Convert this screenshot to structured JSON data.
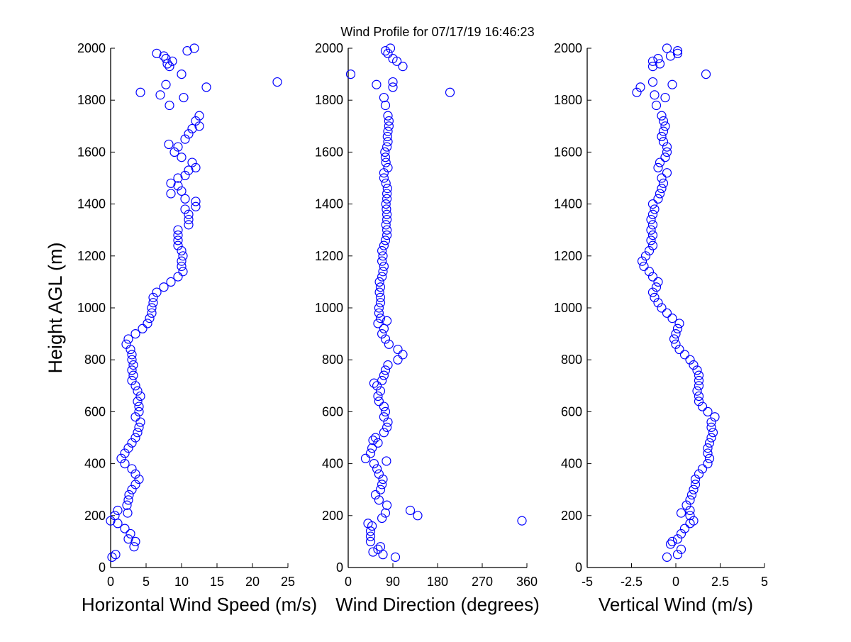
{
  "chart_data": [
    {
      "type": "scatter",
      "title": "Wind Profile for  07/17/19 16:46:23",
      "xlabel": "Horizontal Wind Speed (m/s)",
      "ylabel": "Height AGL (m)",
      "xlim": [
        0,
        25
      ],
      "ylim": [
        0,
        2000
      ],
      "xticks": [
        "0",
        "5",
        "10",
        "15",
        "20",
        "25"
      ],
      "yticks": [
        "0",
        "200",
        "400",
        "600",
        "800",
        "1000",
        "1200",
        "1400",
        "1600",
        "1800",
        "2000"
      ],
      "marker": "open-circle",
      "color": "#0000ff",
      "points_value_height": [
        [
          0.2,
          40
        ],
        [
          0.7,
          50
        ],
        [
          3.3,
          80
        ],
        [
          3.5,
          100
        ],
        [
          2.5,
          110
        ],
        [
          2.8,
          130
        ],
        [
          2.0,
          150
        ],
        [
          1.0,
          170
        ],
        [
          0,
          180
        ],
        [
          0.6,
          200
        ],
        [
          2.4,
          210
        ],
        [
          1.0,
          220
        ],
        [
          2.3,
          240
        ],
        [
          2.5,
          260
        ],
        [
          2.6,
          280
        ],
        [
          3.0,
          300
        ],
        [
          3.5,
          320
        ],
        [
          4.0,
          340
        ],
        [
          3.5,
          360
        ],
        [
          3.0,
          380
        ],
        [
          2.0,
          400
        ],
        [
          1.5,
          420
        ],
        [
          2.0,
          440
        ],
        [
          2.5,
          460
        ],
        [
          3.0,
          480
        ],
        [
          3.5,
          500
        ],
        [
          3.8,
          520
        ],
        [
          4.0,
          540
        ],
        [
          4.2,
          560
        ],
        [
          3.5,
          580
        ],
        [
          4.0,
          600
        ],
        [
          4.0,
          620
        ],
        [
          3.8,
          640
        ],
        [
          4.2,
          660
        ],
        [
          3.8,
          680
        ],
        [
          3.5,
          700
        ],
        [
          3.0,
          720
        ],
        [
          3.2,
          740
        ],
        [
          3.0,
          760
        ],
        [
          3.2,
          780
        ],
        [
          3.0,
          800
        ],
        [
          3.0,
          820
        ],
        [
          2.8,
          840
        ],
        [
          2.2,
          860
        ],
        [
          2.5,
          880
        ],
        [
          3.5,
          900
        ],
        [
          4.5,
          920
        ],
        [
          5.2,
          940
        ],
        [
          5.5,
          960
        ],
        [
          5.8,
          980
        ],
        [
          5.8,
          1000
        ],
        [
          6.0,
          1020
        ],
        [
          6.0,
          1040
        ],
        [
          6.5,
          1060
        ],
        [
          7.5,
          1080
        ],
        [
          8.5,
          1100
        ],
        [
          9.5,
          1120
        ],
        [
          10.2,
          1140
        ],
        [
          10.0,
          1160
        ],
        [
          10.0,
          1180
        ],
        [
          10.2,
          1200
        ],
        [
          10.0,
          1220
        ],
        [
          9.5,
          1240
        ],
        [
          9.5,
          1260
        ],
        [
          9.5,
          1280
        ],
        [
          9.5,
          1300
        ],
        [
          11.0,
          1320
        ],
        [
          11.0,
          1340
        ],
        [
          11.0,
          1360
        ],
        [
          10.5,
          1380
        ],
        [
          12.0,
          1390
        ],
        [
          12.0,
          1410
        ],
        [
          10.5,
          1420
        ],
        [
          8.5,
          1440
        ],
        [
          10.0,
          1450
        ],
        [
          9.5,
          1470
        ],
        [
          8.5,
          1480
        ],
        [
          9.5,
          1500
        ],
        [
          10.5,
          1510
        ],
        [
          11.0,
          1530
        ],
        [
          12.0,
          1540
        ],
        [
          11.5,
          1560
        ],
        [
          10.0,
          1580
        ],
        [
          9.0,
          1600
        ],
        [
          9.5,
          1620
        ],
        [
          8.2,
          1630
        ],
        [
          10.5,
          1650
        ],
        [
          11.0,
          1670
        ],
        [
          11.5,
          1690
        ],
        [
          12.5,
          1700
        ],
        [
          12.0,
          1720
        ],
        [
          12.5,
          1740
        ],
        [
          8.3,
          1780
        ],
        [
          10.3,
          1810
        ],
        [
          7.0,
          1820
        ],
        [
          4.2,
          1830
        ],
        [
          13.5,
          1850
        ],
        [
          7.8,
          1860
        ],
        [
          23.5,
          1870
        ],
        [
          10.0,
          1900
        ],
        [
          8.3,
          1930
        ],
        [
          8.0,
          1940
        ],
        [
          8.7,
          1950
        ],
        [
          7.8,
          1960
        ],
        [
          7.5,
          1970
        ],
        [
          6.5,
          1980
        ],
        [
          10.8,
          1990
        ],
        [
          11.8,
          2000
        ]
      ]
    },
    {
      "type": "scatter",
      "xlabel": "Wind Direction (degrees)",
      "xlim": [
        0,
        360
      ],
      "ylim": [
        0,
        2000
      ],
      "xticks": [
        "0",
        "90",
        "180",
        "270",
        "360"
      ],
      "yticks": [
        "0",
        "200",
        "400",
        "600",
        "800",
        "1000",
        "1200",
        "1400",
        "1600",
        "1800",
        "2000"
      ],
      "marker": "open-circle",
      "color": "#0000ff",
      "points_value_height": [
        [
          95,
          40
        ],
        [
          70,
          50
        ],
        [
          50,
          60
        ],
        [
          60,
          70
        ],
        [
          65,
          80
        ],
        [
          45,
          100
        ],
        [
          45,
          120
        ],
        [
          45,
          140
        ],
        [
          48,
          160
        ],
        [
          40,
          170
        ],
        [
          350,
          180
        ],
        [
          68,
          190
        ],
        [
          140,
          200
        ],
        [
          75,
          210
        ],
        [
          125,
          220
        ],
        [
          78,
          240
        ],
        [
          62,
          260
        ],
        [
          55,
          280
        ],
        [
          65,
          300
        ],
        [
          68,
          320
        ],
        [
          70,
          340
        ],
        [
          62,
          360
        ],
        [
          58,
          380
        ],
        [
          52,
          400
        ],
        [
          77,
          410
        ],
        [
          35,
          420
        ],
        [
          45,
          440
        ],
        [
          48,
          460
        ],
        [
          60,
          480
        ],
        [
          50,
          490
        ],
        [
          55,
          500
        ],
        [
          72,
          520
        ],
        [
          78,
          540
        ],
        [
          80,
          560
        ],
        [
          72,
          580
        ],
        [
          75,
          600
        ],
        [
          72,
          620
        ],
        [
          62,
          640
        ],
        [
          60,
          660
        ],
        [
          65,
          680
        ],
        [
          58,
          700
        ],
        [
          52,
          710
        ],
        [
          68,
          720
        ],
        [
          72,
          740
        ],
        [
          75,
          760
        ],
        [
          80,
          780
        ],
        [
          100,
          800
        ],
        [
          110,
          820
        ],
        [
          100,
          840
        ],
        [
          82,
          860
        ],
        [
          75,
          880
        ],
        [
          68,
          900
        ],
        [
          72,
          920
        ],
        [
          60,
          940
        ],
        [
          78,
          950
        ],
        [
          65,
          960
        ],
        [
          62,
          980
        ],
        [
          62,
          1000
        ],
        [
          65,
          1020
        ],
        [
          65,
          1040
        ],
        [
          63,
          1060
        ],
        [
          65,
          1080
        ],
        [
          63,
          1100
        ],
        [
          68,
          1120
        ],
        [
          70,
          1140
        ],
        [
          72,
          1160
        ],
        [
          68,
          1180
        ],
        [
          70,
          1200
        ],
        [
          68,
          1220
        ],
        [
          72,
          1240
        ],
        [
          75,
          1260
        ],
        [
          78,
          1280
        ],
        [
          78,
          1300
        ],
        [
          76,
          1320
        ],
        [
          78,
          1340
        ],
        [
          78,
          1360
        ],
        [
          77,
          1380
        ],
        [
          76,
          1400
        ],
        [
          78,
          1420
        ],
        [
          78,
          1440
        ],
        [
          79,
          1460
        ],
        [
          76,
          1480
        ],
        [
          72,
          1500
        ],
        [
          72,
          1520
        ],
        [
          80,
          1540
        ],
        [
          76,
          1560
        ],
        [
          75,
          1580
        ],
        [
          74,
          1600
        ],
        [
          78,
          1620
        ],
        [
          80,
          1640
        ],
        [
          79,
          1660
        ],
        [
          80,
          1680
        ],
        [
          82,
          1700
        ],
        [
          82,
          1720
        ],
        [
          80,
          1740
        ],
        [
          75,
          1780
        ],
        [
          72,
          1810
        ],
        [
          205,
          1830
        ],
        [
          90,
          1850
        ],
        [
          57,
          1860
        ],
        [
          90,
          1870
        ],
        [
          5,
          1900
        ],
        [
          110,
          1930
        ],
        [
          98,
          1950
        ],
        [
          90,
          1960
        ],
        [
          80,
          1980
        ],
        [
          75,
          1990
        ],
        [
          85,
          2000
        ]
      ]
    },
    {
      "type": "scatter",
      "xlabel": "Vertical Wind (m/s)",
      "xlim": [
        -5,
        5
      ],
      "ylim": [
        0,
        2000
      ],
      "xticks": [
        "-5",
        "-2.5",
        "0",
        "2.5",
        "5"
      ],
      "yticks": [
        "0",
        "200",
        "400",
        "600",
        "800",
        "1000",
        "1200",
        "1400",
        "1600",
        "1800",
        "2000"
      ],
      "marker": "open-circle",
      "color": "#0000ff",
      "points_value_height": [
        [
          -0.5,
          40
        ],
        [
          0.1,
          50
        ],
        [
          0.3,
          70
        ],
        [
          -0.3,
          90
        ],
        [
          -0.2,
          100
        ],
        [
          0.1,
          110
        ],
        [
          0.3,
          130
        ],
        [
          0.5,
          150
        ],
        [
          0.8,
          170
        ],
        [
          1.0,
          180
        ],
        [
          0.8,
          200
        ],
        [
          0.3,
          210
        ],
        [
          0.8,
          220
        ],
        [
          0.6,
          240
        ],
        [
          0.8,
          260
        ],
        [
          0.9,
          280
        ],
        [
          1.0,
          300
        ],
        [
          1.1,
          320
        ],
        [
          1.1,
          340
        ],
        [
          1.3,
          360
        ],
        [
          1.5,
          380
        ],
        [
          1.8,
          400
        ],
        [
          1.9,
          420
        ],
        [
          1.8,
          440
        ],
        [
          1.8,
          460
        ],
        [
          1.9,
          480
        ],
        [
          2.0,
          500
        ],
        [
          2.1,
          520
        ],
        [
          2.0,
          540
        ],
        [
          2.0,
          560
        ],
        [
          2.2,
          580
        ],
        [
          1.8,
          600
        ],
        [
          1.5,
          620
        ],
        [
          1.3,
          640
        ],
        [
          1.3,
          660
        ],
        [
          1.2,
          680
        ],
        [
          1.3,
          700
        ],
        [
          1.3,
          720
        ],
        [
          1.3,
          740
        ],
        [
          1.2,
          760
        ],
        [
          1.0,
          780
        ],
        [
          0.8,
          800
        ],
        [
          0.5,
          820
        ],
        [
          0.2,
          840
        ],
        [
          0.0,
          860
        ],
        [
          -0.1,
          880
        ],
        [
          0.0,
          900
        ],
        [
          0.1,
          920
        ],
        [
          0.2,
          940
        ],
        [
          -0.2,
          960
        ],
        [
          -0.5,
          980
        ],
        [
          -0.8,
          1000
        ],
        [
          -1.0,
          1020
        ],
        [
          -1.2,
          1040
        ],
        [
          -1.3,
          1060
        ],
        [
          -1.1,
          1080
        ],
        [
          -1.0,
          1100
        ],
        [
          -1.3,
          1120
        ],
        [
          -1.5,
          1140
        ],
        [
          -1.8,
          1160
        ],
        [
          -1.9,
          1180
        ],
        [
          -1.7,
          1200
        ],
        [
          -1.5,
          1220
        ],
        [
          -1.3,
          1240
        ],
        [
          -1.4,
          1260
        ],
        [
          -1.3,
          1280
        ],
        [
          -1.4,
          1300
        ],
        [
          -1.3,
          1320
        ],
        [
          -1.4,
          1340
        ],
        [
          -1.3,
          1360
        ],
        [
          -1.2,
          1380
        ],
        [
          -1.3,
          1400
        ],
        [
          -1.0,
          1420
        ],
        [
          -0.9,
          1440
        ],
        [
          -0.8,
          1460
        ],
        [
          -0.7,
          1480
        ],
        [
          -0.8,
          1500
        ],
        [
          -0.5,
          1520
        ],
        [
          -1.0,
          1540
        ],
        [
          -0.9,
          1560
        ],
        [
          -0.6,
          1580
        ],
        [
          -0.5,
          1600
        ],
        [
          -0.5,
          1620
        ],
        [
          -0.7,
          1640
        ],
        [
          -0.8,
          1660
        ],
        [
          -0.7,
          1680
        ],
        [
          -0.6,
          1700
        ],
        [
          -0.7,
          1720
        ],
        [
          -0.8,
          1740
        ],
        [
          -1.1,
          1780
        ],
        [
          -0.6,
          1810
        ],
        [
          -1.2,
          1820
        ],
        [
          -2.2,
          1830
        ],
        [
          -2.0,
          1850
        ],
        [
          -0.2,
          1860
        ],
        [
          -1.3,
          1870
        ],
        [
          1.7,
          1900
        ],
        [
          -1.3,
          1930
        ],
        [
          -0.9,
          1940
        ],
        [
          -1.3,
          1950
        ],
        [
          -1.0,
          1960
        ],
        [
          -0.3,
          1970
        ],
        [
          0.1,
          1980
        ],
        [
          0.1,
          1990
        ],
        [
          -0.5,
          2000
        ]
      ]
    }
  ]
}
